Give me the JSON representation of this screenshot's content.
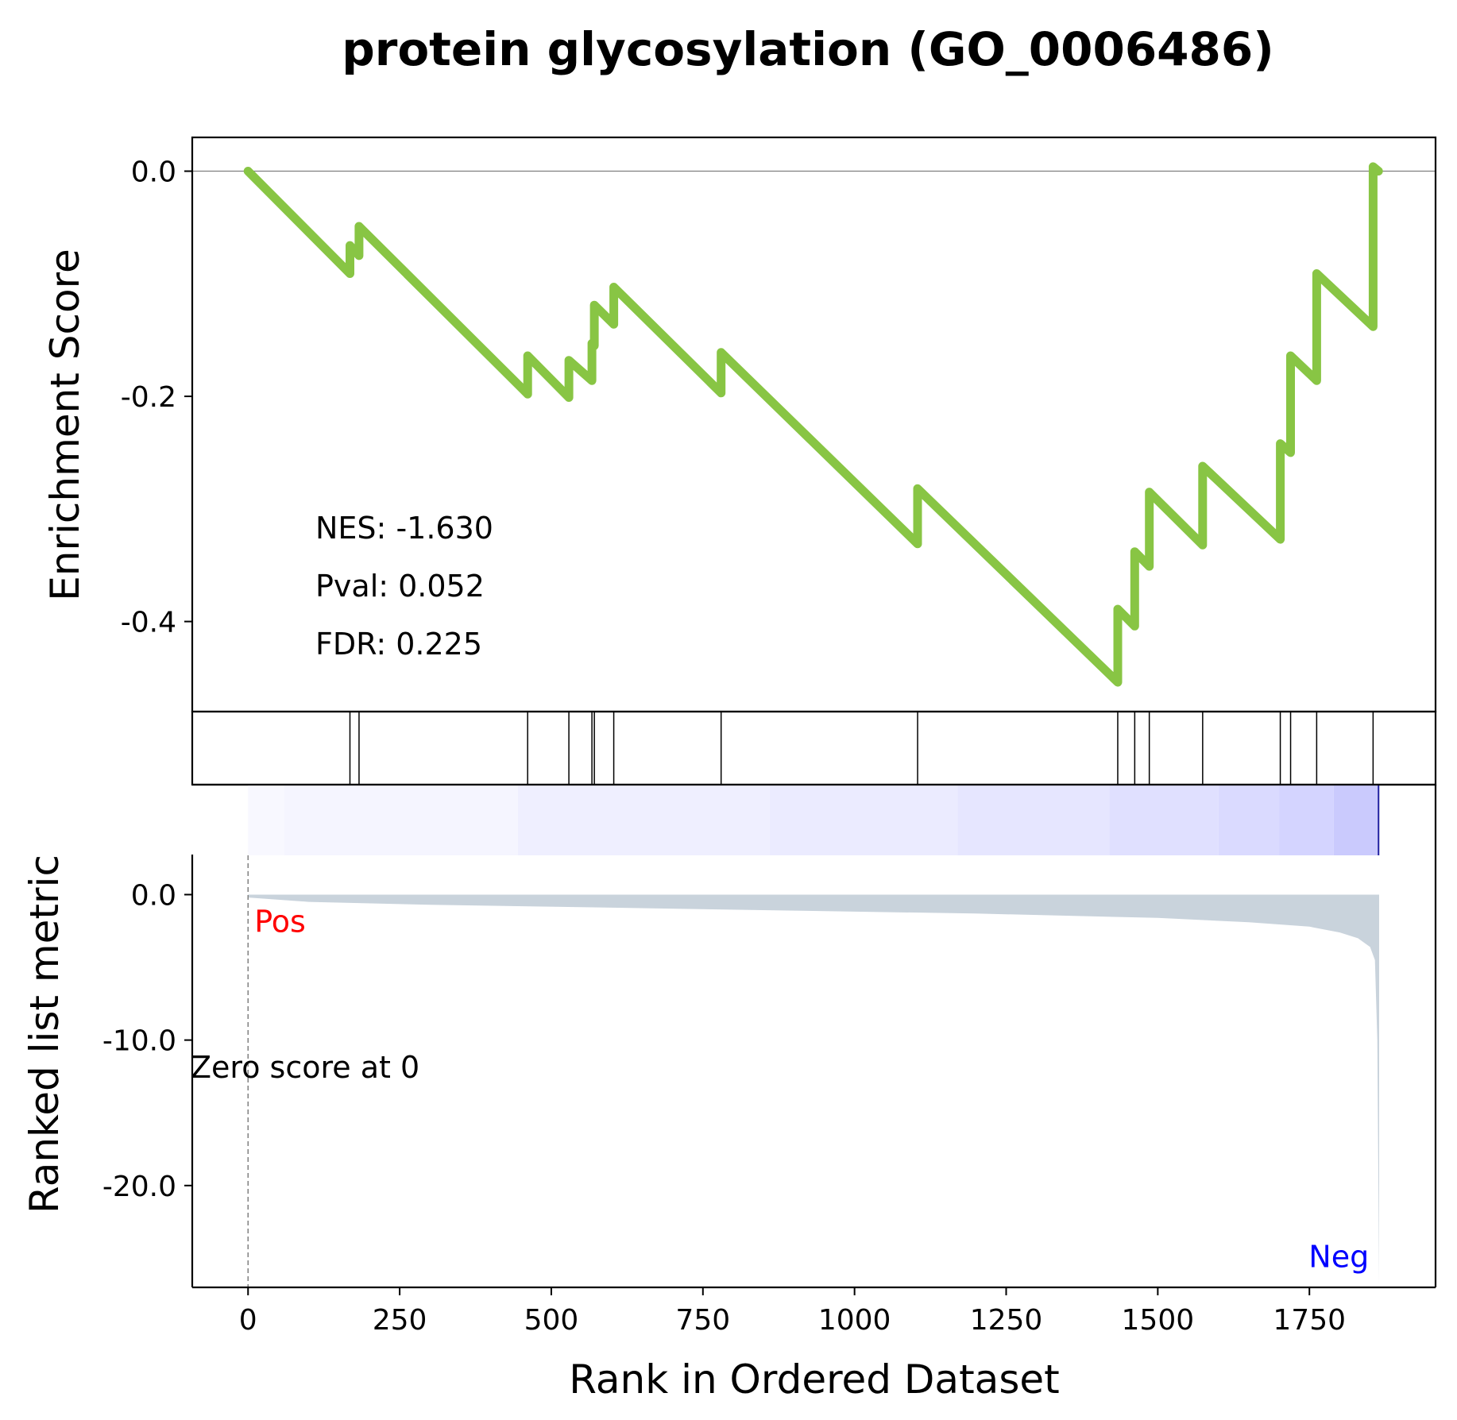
{
  "chart_data": {
    "type": "line",
    "title": "protein glycosylation (GO_0006486)",
    "xlabel": "Rank in Ordered Dataset",
    "ylabel_top": "Enrichment Score",
    "ylabel_bottom": "Ranked list metric",
    "xlim": [
      -92,
      1958
    ],
    "es_ylim": [
      -0.48,
      0.03
    ],
    "metric_ylim": [
      -27.0,
      2.7
    ],
    "x_ticks": [
      0,
      250,
      500,
      750,
      1000,
      1250,
      1500,
      1750
    ],
    "x_tick_labels": [
      "0",
      "250",
      "500",
      "750",
      "1000",
      "1250",
      "1500",
      "1750"
    ],
    "es_ticks": [
      0.0,
      -0.2,
      -0.4
    ],
    "es_tick_labels": [
      "0.0",
      "-0.2",
      "-0.4"
    ],
    "metric_ticks": [
      0.0,
      -10.0,
      -20.0
    ],
    "metric_tick_labels": [
      "0.0",
      "-10.0",
      "-20.0"
    ],
    "stats": {
      "nes": "NES: -1.630",
      "pval": "Pval: 0.052",
      "fdr": "FDR: 0.225"
    },
    "annotations": {
      "pos": "Pos",
      "neg": "Neg",
      "zero": "Zero score at 0"
    },
    "es_curve": {
      "x": [
        0,
        168,
        168,
        183,
        183,
        461,
        461,
        529,
        529,
        567,
        567,
        571,
        571,
        603,
        603,
        780,
        780,
        1104,
        1104,
        1434,
        1434,
        1462,
        1462,
        1486,
        1486,
        1574,
        1574,
        1702,
        1702,
        1719,
        1719,
        1762,
        1762,
        1855,
        1855,
        1864
      ],
      "y": [
        0.0,
        -0.091,
        -0.066,
        -0.075,
        -0.049,
        -0.198,
        -0.164,
        -0.201,
        -0.168,
        -0.186,
        -0.153,
        -0.155,
        -0.119,
        -0.136,
        -0.103,
        -0.197,
        -0.161,
        -0.331,
        -0.282,
        -0.454,
        -0.389,
        -0.404,
        -0.338,
        -0.351,
        -0.285,
        -0.332,
        -0.262,
        -0.327,
        -0.242,
        -0.25,
        -0.164,
        -0.186,
        -0.091,
        -0.138,
        0.004,
        0.0
      ]
    },
    "hits": [
      168,
      183,
      461,
      529,
      567,
      571,
      603,
      780,
      1104,
      1434,
      1462,
      1486,
      1574,
      1702,
      1719,
      1762,
      1855
    ],
    "metric_curve": {
      "x": [
        0,
        100,
        300,
        600,
        900,
        1200,
        1500,
        1650,
        1750,
        1800,
        1830,
        1850,
        1858,
        1862,
        1865
      ],
      "y": [
        -0.2,
        -0.5,
        -0.7,
        -0.9,
        -1.1,
        -1.3,
        -1.6,
        -1.9,
        -2.2,
        -2.6,
        -3.0,
        -3.6,
        -4.5,
        -10.0,
        -26.8
      ]
    },
    "colors": {
      "es_line": "#88c544",
      "metric_fill": "#c9d3dc",
      "pos": "#ff0000",
      "neg": "#0000ff",
      "heat_start": "#f8f8ff",
      "heat_end": "#cfcfff"
    }
  }
}
